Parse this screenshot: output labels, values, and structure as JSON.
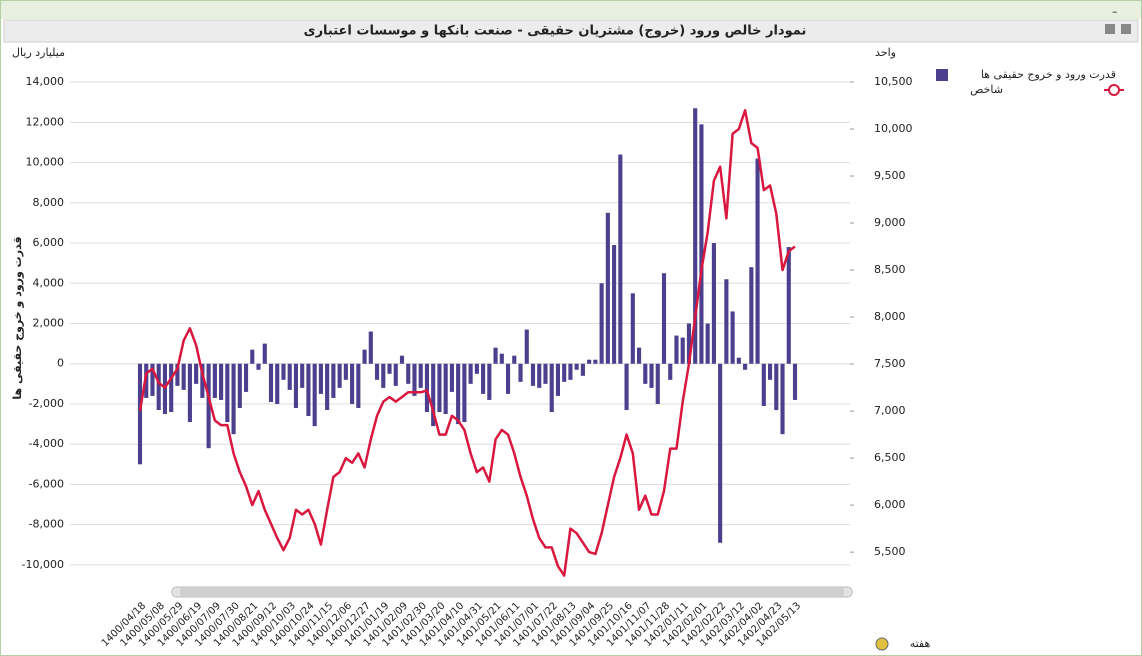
{
  "chart_data": {
    "type": "bar",
    "title": "نمودار خالص ورود (خروج) مشتریان حقیقی - صنعت بانکها و موسسات اعتباری",
    "y_unit": "میلیارد ریال",
    "y2_unit": "واحد",
    "ylabel": "قدرت ورود و خروج حقیقی ها",
    "xlabel": "هفته",
    "grid": true,
    "legend": "right",
    "categories": [
      "1400/04/18",
      null,
      null,
      "1400/05/08",
      null,
      null,
      "1400/05/29",
      null,
      null,
      "1400/06/19",
      null,
      null,
      "1400/07/09",
      null,
      null,
      "1400/07/30",
      null,
      null,
      "1400/08/21",
      null,
      null,
      "1400/09/12",
      null,
      null,
      "1400/10/03",
      null,
      null,
      "1400/10/24",
      null,
      null,
      "1400/11/15",
      null,
      null,
      "1400/12/06",
      null,
      null,
      "1400/12/27",
      null,
      null,
      "1401/01/19",
      null,
      null,
      "1401/02/09",
      null,
      null,
      "1401/02/30",
      null,
      null,
      "1401/03/20",
      null,
      null,
      "1401/04/10",
      null,
      null,
      "1401/04/31",
      null,
      null,
      "1401/05/21",
      null,
      null,
      "1401/06/11",
      null,
      null,
      "1401/07/01",
      null,
      null,
      "1401/07/22",
      null,
      null,
      "1401/08/13",
      null,
      null,
      "1401/09/04",
      null,
      null,
      "1401/09/25",
      null,
      null,
      "1401/10/16",
      null,
      null,
      "1401/11/07",
      null,
      null,
      "1401/11/28",
      null,
      null,
      "1402/01/11",
      null,
      null,
      "1402/02/01",
      null,
      null,
      "1402/02/22",
      null,
      null,
      "1402/03/12",
      null,
      null,
      "1402/04/02",
      null,
      null,
      "1402/04/23",
      null,
      null,
      "1402/05/13"
    ],
    "series": [
      {
        "name": "قدرت ورود و خروج حقیقی ها",
        "type": "bar",
        "color": "#4b3f8e",
        "values": [
          -5000,
          -1700,
          -1600,
          -2300,
          -2500,
          -2400,
          -1100,
          -1300,
          -2900,
          -1000,
          -1700,
          -4200,
          -1700,
          -1800,
          -2900,
          -3500,
          -2200,
          -1400,
          700,
          -300,
          1000,
          -1900,
          -2000,
          -800,
          -1300,
          -2200,
          -1200,
          -2600,
          -3100,
          -1500,
          -2300,
          -1700,
          -1200,
          -800,
          -2000,
          -2200,
          700,
          1600,
          -800,
          -1200,
          -500,
          -1100,
          400,
          -1000,
          -1600,
          -1200,
          -2400,
          -3100,
          -2400,
          -2500,
          -1400,
          -3000,
          -2900,
          -1000,
          -500,
          -1500,
          -1800,
          800,
          500,
          -1500,
          400,
          -900,
          1700,
          -1100,
          -1200,
          -1000,
          -2400,
          -1600,
          -900,
          -800,
          -300,
          -600,
          200,
          200,
          4000,
          7500,
          5900,
          10400,
          -2300,
          3500,
          800,
          -1000,
          -1200,
          -2000,
          4500,
          -800,
          1400,
          1300,
          2000,
          12700,
          11900,
          2000,
          6000,
          -8900,
          4200,
          2600,
          300,
          -300,
          4800,
          10200,
          -2100,
          -800,
          -2300,
          -3500,
          5800,
          -1800
        ]
      },
      {
        "name": "شاخص",
        "type": "line",
        "axis": "y2",
        "color": "#d9173f",
        "values": [
          7000,
          7400,
          7450,
          7300,
          7250,
          7350,
          7450,
          7750,
          7880,
          7700,
          7400,
          7150,
          6900,
          6850,
          6850,
          6550,
          6350,
          6200,
          6000,
          6150,
          5950,
          5800,
          5650,
          5520,
          5650,
          5950,
          5900,
          5950,
          5800,
          5580,
          5950,
          6300,
          6350,
          6500,
          6450,
          6550,
          6400,
          6700,
          6950,
          7100,
          7150,
          7100,
          7150,
          7200,
          7200,
          7200,
          7220,
          7000,
          6750,
          6750,
          6950,
          6900,
          6800,
          6550,
          6350,
          6400,
          6250,
          6700,
          6800,
          6750,
          6550,
          6300,
          6100,
          5850,
          5650,
          5550,
          5550,
          5350,
          5250,
          5750,
          5700,
          5600,
          5500,
          5480,
          5700,
          6000,
          6300,
          6500,
          6750,
          6550,
          5950,
          6100,
          5900,
          5900,
          6150,
          6600,
          6600,
          7100,
          7500,
          8000,
          8500,
          8900,
          9450,
          9600,
          9050,
          9950,
          10000,
          10200,
          9850,
          9800,
          9350,
          9400,
          9100,
          8500,
          8700,
          8750
        ]
      }
    ],
    "ylim": [
      -11000,
      15000
    ],
    "yticks": [
      {
        "value": -10000,
        "label": "-10,000"
      },
      {
        "value": -8000,
        "label": "-8,000"
      },
      {
        "value": -6000,
        "label": "-6,000"
      },
      {
        "value": -4000,
        "label": "-4,000"
      },
      {
        "value": -2000,
        "label": "-2,000"
      },
      0,
      {
        "value": 2000,
        "label": "2,000"
      },
      {
        "value": 4000,
        "label": "4,000"
      },
      {
        "value": 6000,
        "label": "6,000"
      },
      {
        "value": 8000,
        "label": "8,000"
      },
      {
        "value": 10000,
        "label": "10,000"
      },
      {
        "value": 12000,
        "label": "12,000"
      },
      {
        "value": 14000,
        "label": "14,000"
      }
    ],
    "y2lim": [
      5150,
      10713
    ],
    "y2ticks": [
      {
        "value": 5500,
        "label": "5,500"
      },
      {
        "value": 6000,
        "label": "6,000"
      },
      {
        "value": 6500,
        "label": "6,500"
      },
      {
        "value": 7000,
        "label": "7,000"
      },
      {
        "value": 7500,
        "label": "7,500"
      },
      {
        "value": 8000,
        "label": "8,000"
      },
      {
        "value": 8500,
        "label": "8,500"
      },
      {
        "value": 9000,
        "label": "9,000"
      },
      {
        "value": 9500,
        "label": "9,500"
      },
      {
        "value": 10000,
        "label": "10,000"
      },
      {
        "value": 10500,
        "label": "10,500"
      }
    ]
  }
}
